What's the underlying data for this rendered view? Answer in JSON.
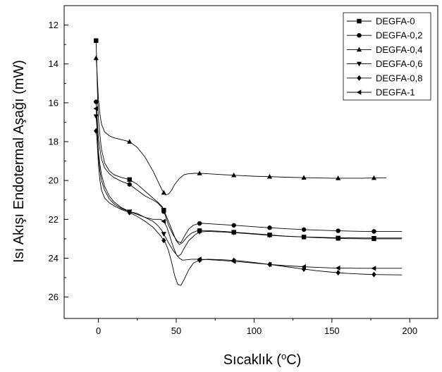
{
  "chart_data": {
    "type": "line",
    "title": "",
    "xlabel": "Sıcaklık (",
    "xlabel_sup": "o",
    "xlabel_end": "C)",
    "ylabel": "Isı Akışı Endotermal Aşağı (mW)",
    "xlim": [
      -22,
      218
    ],
    "ylim": [
      27.1,
      11.0
    ],
    "y_inverted": true,
    "x_ticks": [
      0,
      50,
      100,
      150,
      200
    ],
    "x_tick_labels": [
      "0",
      "50",
      "100",
      "150",
      "200"
    ],
    "y_ticks": [
      12,
      14,
      16,
      18,
      20,
      22,
      24,
      26
    ],
    "y_tick_labels": [
      "12",
      "14",
      "16",
      "18",
      "20",
      "22",
      "24",
      "26"
    ],
    "legend_position": "top-right",
    "grid": false,
    "series": [
      {
        "name": "DEGFA-0",
        "marker": "square",
        "x": [
          -1.5,
          -1,
          -0.5,
          0,
          1,
          2,
          4,
          7,
          10,
          15,
          20,
          25,
          30,
          35,
          38,
          41,
          43,
          45,
          48,
          50,
          52,
          54,
          57,
          60,
          63,
          65,
          70,
          80,
          90,
          100,
          110,
          120,
          130,
          140,
          150,
          160,
          170,
          177,
          185,
          195
        ],
        "y": [
          12.8,
          14.2,
          15.8,
          16.8,
          17.7,
          18.4,
          19.1,
          19.5,
          19.7,
          19.85,
          19.95,
          20.2,
          20.55,
          20.9,
          21.1,
          21.35,
          21.7,
          22.1,
          22.7,
          23.1,
          23.3,
          23.2,
          22.9,
          22.7,
          22.6,
          22.58,
          22.58,
          22.62,
          22.68,
          22.74,
          22.8,
          22.86,
          22.9,
          22.94,
          22.97,
          22.99,
          23.0,
          23.0,
          23.0,
          23.0
        ],
        "marker_x": [
          -1.5,
          20,
          42,
          65,
          87,
          110,
          132,
          154,
          177
        ]
      },
      {
        "name": "DEGFA-0,2",
        "marker": "circle",
        "x": [
          -1.5,
          -1,
          -0.5,
          0,
          1,
          2,
          4,
          7,
          10,
          15,
          20,
          25,
          30,
          35,
          38,
          41,
          43,
          45,
          48,
          51,
          53,
          55,
          58,
          61,
          64,
          66,
          70,
          80,
          90,
          100,
          110,
          120,
          130,
          140,
          150,
          160,
          170,
          177,
          185,
          195
        ],
        "y": [
          15.95,
          16.5,
          17.2,
          17.8,
          18.4,
          18.9,
          19.35,
          19.65,
          19.85,
          20.05,
          20.2,
          20.5,
          20.8,
          21.0,
          21.15,
          21.4,
          21.8,
          22.3,
          22.8,
          23.15,
          23.2,
          22.9,
          22.5,
          22.3,
          22.22,
          22.2,
          22.22,
          22.27,
          22.32,
          22.38,
          22.43,
          22.48,
          22.52,
          22.55,
          22.58,
          22.6,
          22.62,
          22.62,
          22.62,
          22.62
        ],
        "marker_x": [
          -1.5,
          20,
          42,
          65,
          87,
          110,
          132,
          154,
          177
        ]
      },
      {
        "name": "DEGFA-0,4",
        "marker": "triangle-up",
        "x": [
          -1.5,
          -1,
          -0.5,
          0,
          1,
          2,
          4,
          7,
          10,
          15,
          20,
          25,
          30,
          35,
          38,
          41,
          43,
          45,
          47,
          49,
          52,
          55,
          58,
          62,
          65,
          70,
          80,
          90,
          100,
          110,
          120,
          130,
          140,
          150,
          160,
          170,
          177,
          185
        ],
        "y": [
          13.7,
          14.2,
          15.0,
          15.8,
          16.6,
          17.1,
          17.5,
          17.7,
          17.8,
          17.9,
          18.0,
          18.3,
          18.8,
          19.5,
          20.0,
          20.5,
          20.75,
          20.7,
          20.5,
          20.2,
          19.9,
          19.7,
          19.65,
          19.63,
          19.63,
          19.65,
          19.7,
          19.74,
          19.78,
          19.8,
          19.83,
          19.85,
          19.87,
          19.88,
          19.88,
          19.88,
          19.87,
          19.86
        ],
        "marker_x": [
          -1.5,
          20,
          42,
          65,
          87,
          110,
          132,
          154,
          177
        ]
      },
      {
        "name": "DEGFA-0,6",
        "marker": "triangle-down",
        "x": [
          -1.5,
          -1,
          -0.5,
          0,
          1,
          2,
          4,
          7,
          10,
          15,
          20,
          25,
          30,
          35,
          38,
          41,
          43,
          45,
          48,
          51,
          53,
          55,
          58,
          62,
          65,
          70,
          80,
          90,
          100,
          110,
          120,
          130,
          140,
          150,
          160,
          170,
          177,
          185,
          195
        ],
        "y": [
          16.7,
          17.2,
          17.8,
          18.5,
          19.2,
          19.7,
          20.3,
          20.8,
          21.1,
          21.4,
          21.6,
          21.7,
          21.9,
          22.1,
          22.3,
          22.6,
          22.9,
          23.2,
          23.6,
          23.9,
          23.8,
          23.5,
          23.1,
          22.8,
          22.65,
          22.62,
          22.65,
          22.7,
          22.76,
          22.82,
          22.87,
          22.9,
          22.92,
          22.94,
          22.95,
          22.96,
          22.96,
          22.96,
          22.96
        ],
        "marker_x": [
          -1.5,
          20,
          42,
          65,
          87,
          110,
          132,
          154,
          177
        ]
      },
      {
        "name": "DEGFA-0,8",
        "marker": "diamond",
        "x": [
          -1.5,
          -1,
          -0.5,
          0,
          1,
          2,
          4,
          7,
          10,
          15,
          20,
          25,
          30,
          35,
          40,
          43,
          45,
          47,
          49,
          51,
          53,
          55,
          58,
          61,
          65,
          70,
          80,
          90,
          100,
          110,
          120,
          130,
          140,
          150,
          160,
          170,
          177,
          185,
          195
        ],
        "y": [
          17.45,
          17.8,
          18.4,
          19.2,
          20.0,
          20.5,
          20.9,
          21.15,
          21.3,
          21.5,
          21.65,
          21.85,
          22.1,
          22.4,
          22.85,
          23.2,
          23.6,
          24.2,
          24.9,
          25.35,
          25.4,
          25.1,
          24.6,
          24.25,
          24.1,
          24.05,
          24.08,
          24.13,
          24.22,
          24.32,
          24.43,
          24.54,
          24.64,
          24.72,
          24.78,
          24.82,
          24.84,
          24.85,
          24.86
        ],
        "marker_x": [
          -1.5,
          20,
          42,
          65,
          87,
          110,
          132,
          154,
          177
        ]
      },
      {
        "name": "DEGFA-1",
        "marker": "triangle-left",
        "x": [
          -1.5,
          -1,
          -0.5,
          0,
          1,
          2,
          4,
          7,
          10,
          15,
          20,
          25,
          30,
          35,
          40,
          42,
          44,
          46,
          48,
          50,
          52,
          54,
          57,
          60,
          65,
          70,
          80,
          90,
          100,
          110,
          120,
          130,
          140,
          150,
          160,
          170,
          177,
          185,
          195
        ],
        "y": [
          16.3,
          16.9,
          17.8,
          18.7,
          19.5,
          20.0,
          20.5,
          20.95,
          21.2,
          21.45,
          21.6,
          21.75,
          21.9,
          22.0,
          22.0,
          22.1,
          22.4,
          22.9,
          23.4,
          23.8,
          24.0,
          24.1,
          24.08,
          24.05,
          24.05,
          24.07,
          24.12,
          24.18,
          24.25,
          24.32,
          24.38,
          24.43,
          24.47,
          24.5,
          24.51,
          24.52,
          24.52,
          24.52,
          24.52
        ],
        "marker_x": [
          -1.5,
          20,
          42,
          65,
          87,
          110,
          132,
          154,
          177
        ]
      }
    ]
  }
}
